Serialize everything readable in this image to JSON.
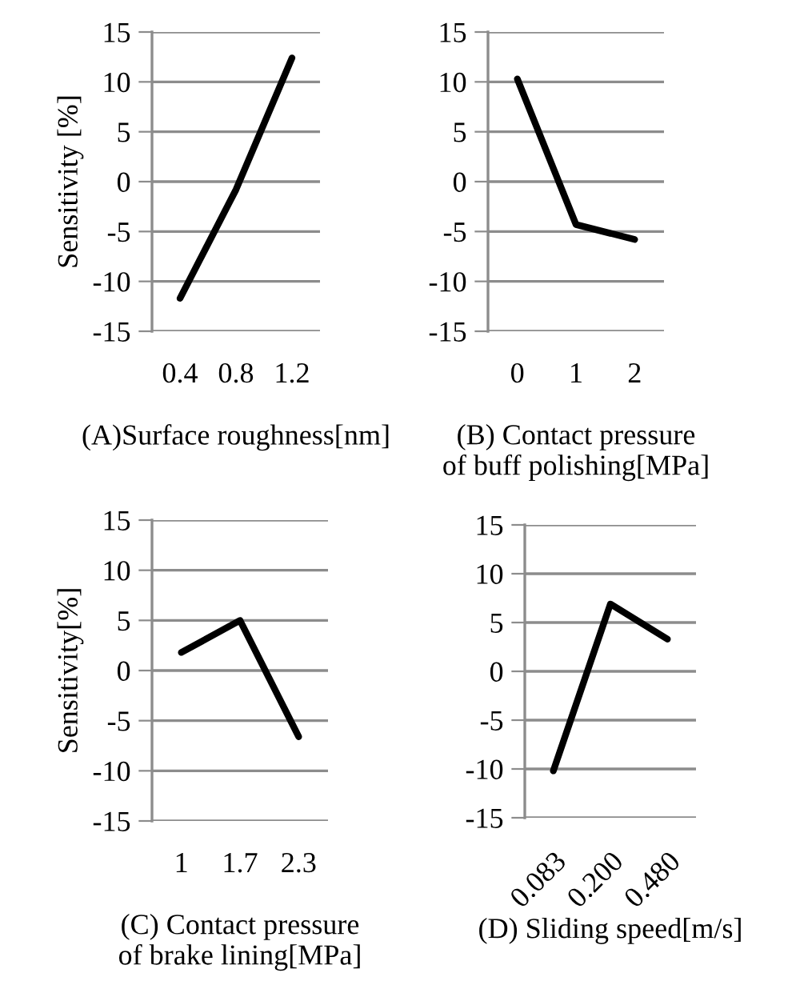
{
  "chart_data": [
    {
      "type": "line",
      "categories": [
        "0.4",
        "0.8",
        "1.2"
      ],
      "series": [
        {
          "color": "#000000",
          "values": [
            -11.7,
            -0.8,
            12.4
          ]
        }
      ],
      "ylabel": "Sensitivity [%]",
      "xlabel": "(A)Surface roughness[nm]",
      "ylim": [
        -15,
        15
      ],
      "yticks": [
        -15,
        -10,
        -5,
        0,
        5,
        10,
        15
      ],
      "grid": "y",
      "marker": "none",
      "line_style": "solid"
    },
    {
      "type": "line",
      "categories": [
        "0",
        "1",
        "2"
      ],
      "series": [
        {
          "color": "#000000",
          "values": [
            10.3,
            -4.3,
            -5.8
          ]
        }
      ],
      "xlabel": "(B) Contact pressure\nof buff polishing[MPa]",
      "ylim": [
        -15,
        15
      ],
      "yticks": [
        -15,
        -10,
        -5,
        0,
        5,
        10,
        15
      ],
      "grid": "y",
      "marker": "none",
      "line_style": "solid"
    },
    {
      "type": "line",
      "categories": [
        "1",
        "1.7",
        "2.3"
      ],
      "series": [
        {
          "color": "#000000",
          "values": [
            1.8,
            5.0,
            -6.6
          ]
        }
      ],
      "ylabel": "Sensitivity[%]",
      "xlabel": "(C) Contact pressure\nof brake lining[MPa]",
      "ylim": [
        -15,
        15
      ],
      "yticks": [
        -15,
        -10,
        -5,
        0,
        5,
        10,
        15
      ],
      "grid": "y",
      "marker": "none",
      "line_style": "solid"
    },
    {
      "type": "line",
      "categories": [
        "0.083",
        "0.200",
        "0.480"
      ],
      "series": [
        {
          "color": "#000000",
          "values": [
            -10.2,
            6.9,
            3.3
          ]
        }
      ],
      "xlabel": "(D) Sliding speed[m/s]",
      "ylim": [
        -15,
        15
      ],
      "yticks": [
        -15,
        -10,
        -5,
        0,
        5,
        10,
        15
      ],
      "grid": "y",
      "marker": "none",
      "line_style": "solid"
    }
  ]
}
